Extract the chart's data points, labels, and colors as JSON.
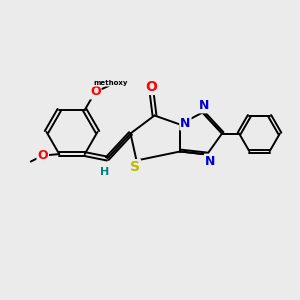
{
  "background_color": "#ebebeb",
  "bond_color": "#000000",
  "atom_colors": {
    "O": "#ff0000",
    "N": "#0000cc",
    "S": "#bbbb00",
    "H": "#008080",
    "C": "#000000"
  },
  "font_size_atoms": 8,
  "fig_width": 3.0,
  "fig_height": 3.0,
  "dpi": 100
}
